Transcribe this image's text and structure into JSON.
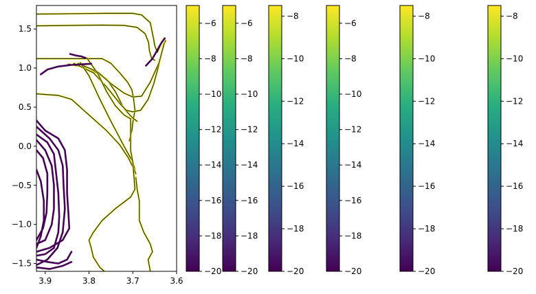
{
  "chart_data": [
    {
      "type": "line",
      "title": "",
      "xlabel": "",
      "ylabel": "",
      "xlim": [
        3.92,
        3.6
      ],
      "ylim": [
        -1.6,
        1.8
      ],
      "x_inverted": true,
      "xticks": [
        3.9,
        3.8,
        3.7,
        3.6
      ],
      "xtick_labels": [
        "3.9",
        "3.8",
        "3.7",
        "3.6"
      ],
      "yticks": [
        -1.5,
        -1.0,
        -0.5,
        0.0,
        0.5,
        1.0,
        1.5
      ],
      "ytick_labels": [
        "−1.5",
        "−1.0",
        "−0.5",
        "0.0",
        "0.5",
        "1.0",
        "1.5"
      ],
      "grid": false,
      "colormap": "viridis",
      "series": [
        {
          "kind": "thin",
          "color": "#440154",
          "points": [
            [
              3.92,
              1.69
            ],
            [
              3.76,
              1.7
            ],
            [
              3.7,
              1.7
            ],
            [
              3.68,
              1.68
            ],
            [
              3.66,
              1.58
            ],
            [
              3.652,
              1.36
            ],
            [
              3.65,
              1.29
            ],
            [
              3.644,
              1.2
            ],
            [
              3.637,
              1.29
            ],
            [
              3.63,
              1.37
            ]
          ]
        },
        {
          "kind": "thin",
          "color": "#440154",
          "points": [
            [
              3.92,
              1.54
            ],
            [
              3.77,
              1.55
            ],
            [
              3.72,
              1.545
            ],
            [
              3.69,
              1.52
            ],
            [
              3.672,
              1.44
            ],
            [
              3.664,
              1.33
            ],
            [
              3.662,
              1.22
            ],
            [
              3.657,
              1.12
            ],
            [
              3.65,
              1.1
            ]
          ]
        },
        {
          "kind": "thin",
          "color": "#440154",
          "points": [
            [
              3.92,
              1.12
            ],
            [
              3.81,
              1.12
            ],
            [
              3.77,
              1.12
            ],
            [
              3.75,
              1.06
            ],
            [
              3.73,
              0.94
            ],
            [
              3.712,
              0.82
            ],
            [
              3.702,
              0.72
            ],
            [
              3.698,
              0.6
            ],
            [
              3.695,
              0.46
            ],
            [
              3.7,
              0.3
            ],
            [
              3.702,
              0.2
            ],
            [
              3.708,
              0.07
            ]
          ]
        },
        {
          "kind": "thin",
          "color": "#440154",
          "points": [
            [
              3.847,
              1.05
            ],
            [
              3.8,
              1.0
            ],
            [
              3.76,
              0.86
            ],
            [
              3.74,
              0.7
            ],
            [
              3.72,
              0.48
            ],
            [
              3.7,
              0.36
            ],
            [
              3.69,
              0.32
            ]
          ]
        },
        {
          "kind": "thin",
          "color": "#440154",
          "points": [
            [
              3.835,
              1.06
            ],
            [
              3.79,
              0.94
            ],
            [
              3.76,
              0.76
            ],
            [
              3.73,
              0.55
            ],
            [
              3.715,
              0.46
            ],
            [
              3.7,
              0.44
            ],
            [
              3.682,
              0.46
            ],
            [
              3.665,
              0.6
            ],
            [
              3.652,
              0.8
            ],
            [
              3.64,
              1.05
            ],
            [
              3.63,
              1.3
            ],
            [
              3.625,
              1.35
            ]
          ]
        },
        {
          "kind": "thin",
          "color": "#440154",
          "points": [
            [
              3.825,
              1.06
            ],
            [
              3.78,
              0.95
            ],
            [
              3.75,
              0.8
            ],
            [
              3.72,
              0.68
            ],
            [
              3.7,
              0.63
            ],
            [
              3.68,
              0.64
            ],
            [
              3.66,
              0.82
            ],
            [
              3.64,
              1.07
            ],
            [
              3.628,
              1.32
            ]
          ]
        },
        {
          "kind": "thin",
          "color": "#440154",
          "points": [
            [
              3.82,
              1.07
            ],
            [
              3.8,
              0.9
            ],
            [
              3.775,
              0.6
            ],
            [
              3.75,
              0.32
            ],
            [
              3.72,
              0.0
            ],
            [
              3.7,
              -0.2
            ],
            [
              3.695,
              -0.3
            ]
          ]
        },
        {
          "kind": "thin",
          "color": "#440154",
          "points": [
            [
              3.92,
              0.67
            ],
            [
              3.87,
              0.65
            ],
            [
              3.84,
              0.6
            ],
            [
              3.8,
              0.4
            ],
            [
              3.76,
              0.2
            ],
            [
              3.73,
              0.02
            ],
            [
              3.71,
              -0.15
            ],
            [
              3.697,
              -0.3
            ],
            [
              3.693,
              -0.35
            ]
          ]
        },
        {
          "kind": "thin",
          "color": "#440154",
          "points": [
            [
              3.805,
              1.13
            ],
            [
              3.78,
              0.93
            ],
            [
              3.76,
              0.7
            ],
            [
              3.74,
              0.52
            ],
            [
              3.72,
              0.4
            ],
            [
              3.705,
              0.35
            ],
            [
              3.705,
              -0.05
            ],
            [
              3.7,
              -0.2
            ],
            [
              3.695,
              -0.55
            ],
            [
              3.705,
              -0.65
            ],
            [
              3.74,
              -0.8
            ],
            [
              3.77,
              -0.95
            ],
            [
              3.79,
              -1.1
            ],
            [
              3.8,
              -1.2
            ],
            [
              3.795,
              -1.3
            ],
            [
              3.79,
              -1.42
            ],
            [
              3.775,
              -1.55
            ],
            [
              3.765,
              -1.6
            ]
          ]
        },
        {
          "kind": "thin",
          "color": "#440154",
          "points": [
            [
              3.693,
              -0.4
            ],
            [
              3.69,
              -0.55
            ],
            [
              3.685,
              -0.7
            ],
            [
              3.685,
              -0.82
            ],
            [
              3.685,
              -0.95
            ],
            [
              3.675,
              -1.1
            ],
            [
              3.66,
              -1.25
            ],
            [
              3.655,
              -1.35
            ],
            [
              3.665,
              -1.45
            ],
            [
              3.66,
              -1.6
            ]
          ]
        },
        {
          "kind": "thick",
          "color": "#440154",
          "points": [
            [
              3.91,
              0.92
            ],
            [
              3.895,
              0.98
            ],
            [
              3.87,
              1.02
            ],
            [
              3.84,
              1.04
            ],
            [
              3.81,
              1.05
            ],
            [
              3.795,
              1.055
            ]
          ]
        },
        {
          "kind": "thick",
          "color": "#440154",
          "points": [
            [
              3.843,
              1.18
            ],
            [
              3.83,
              1.16
            ],
            [
              3.818,
              1.15
            ],
            [
              3.808,
              1.13
            ]
          ]
        },
        {
          "kind": "thick",
          "color": "#440154",
          "points": [
            [
              3.92,
              0.33
            ],
            [
              3.9,
              0.2
            ],
            [
              3.87,
              0.1
            ],
            [
              3.855,
              -0.05
            ],
            [
              3.85,
              -0.3
            ],
            [
              3.85,
              -0.6
            ],
            [
              3.847,
              -0.85
            ],
            [
              3.845,
              -1.05
            ],
            [
              3.86,
              -1.2
            ],
            [
              3.89,
              -1.3
            ],
            [
              3.92,
              -1.35
            ]
          ]
        },
        {
          "kind": "thick",
          "color": "#440154",
          "points": [
            [
              3.92,
              0.25
            ],
            [
              3.89,
              0.1
            ],
            [
              3.87,
              -0.05
            ],
            [
              3.86,
              -0.25
            ],
            [
              3.858,
              -0.5
            ],
            [
              3.855,
              -0.8
            ],
            [
              3.86,
              -1.1
            ],
            [
              3.872,
              -1.3
            ],
            [
              3.895,
              -1.45
            ],
            [
              3.92,
              -1.52
            ]
          ]
        },
        {
          "kind": "thick",
          "color": "#440154",
          "points": [
            [
              3.92,
              0.15
            ],
            [
              3.895,
              0.05
            ],
            [
              3.88,
              -0.1
            ],
            [
              3.875,
              -0.35
            ],
            [
              3.87,
              -0.6
            ],
            [
              3.868,
              -0.9
            ],
            [
              3.87,
              -1.1
            ],
            [
              3.88,
              -1.3
            ],
            [
              3.9,
              -1.38
            ],
            [
              3.92,
              -1.4
            ]
          ]
        },
        {
          "kind": "thick",
          "color": "#440154",
          "points": [
            [
              3.92,
              0.08
            ],
            [
              3.9,
              -0.05
            ],
            [
              3.885,
              -0.25
            ],
            [
              3.88,
              -0.5
            ],
            [
              3.88,
              -0.8
            ],
            [
              3.885,
              -1.0
            ],
            [
              3.9,
              -1.2
            ],
            [
              3.92,
              -1.25
            ]
          ]
        },
        {
          "kind": "thick",
          "color": "#440154",
          "points": [
            [
              3.92,
              -0.05
            ],
            [
              3.905,
              -0.15
            ],
            [
              3.895,
              -0.35
            ],
            [
              3.895,
              -0.6
            ],
            [
              3.897,
              -0.85
            ],
            [
              3.905,
              -1.05
            ],
            [
              3.92,
              -1.2
            ]
          ]
        },
        {
          "kind": "thick",
          "color": "#440154",
          "points": [
            [
              3.92,
              -0.3
            ],
            [
              3.91,
              -0.45
            ],
            [
              3.903,
              -0.7
            ],
            [
              3.903,
              -0.95
            ],
            [
              3.91,
              -1.15
            ],
            [
              3.92,
              -1.3
            ]
          ]
        },
        {
          "kind": "thick",
          "color": "#440154",
          "points": [
            [
              3.92,
              -1.45
            ],
            [
              3.895,
              -1.48
            ],
            [
              3.87,
              -1.5
            ],
            [
              3.85,
              -1.45
            ],
            [
              3.84,
              -1.35
            ]
          ]
        },
        {
          "kind": "thick",
          "color": "#440154",
          "points": [
            [
              3.92,
              -1.55
            ],
            [
              3.89,
              -1.57
            ],
            [
              3.86,
              -1.53
            ],
            [
              3.84,
              -1.48
            ]
          ]
        },
        {
          "kind": "thick",
          "color": "#440154",
          "points": [
            [
              3.67,
              1.03
            ],
            [
              3.655,
              1.12
            ],
            [
              3.645,
              1.22
            ],
            [
              3.635,
              1.32
            ],
            [
              3.627,
              1.38
            ]
          ]
        }
      ]
    },
    {
      "type": "colorbar",
      "colormap": "viridis",
      "range": [
        -20,
        -5
      ],
      "ticks": [
        -6,
        -8,
        -10,
        -12,
        -14,
        -16,
        -18,
        -20
      ],
      "tick_labels": [
        "−6",
        "−8",
        "−10",
        "−12",
        "−14",
        "−16",
        "−18",
        "−20"
      ]
    },
    {
      "type": "colorbar",
      "colormap": "viridis",
      "range": [
        -20,
        -5
      ],
      "ticks": [
        -6,
        -8,
        -10,
        -12,
        -14,
        -16,
        -18,
        -20
      ],
      "tick_labels": [
        "−6",
        "−8",
        "−10",
        "−12",
        "−14",
        "−16",
        "−18",
        "−20"
      ]
    },
    {
      "type": "colorbar",
      "colormap": "viridis",
      "range": [
        -20,
        -7.5
      ],
      "ticks": [
        -8,
        -10,
        -12,
        -14,
        -16,
        -18,
        -20
      ],
      "tick_labels": [
        "−8",
        "−10",
        "−12",
        "−14",
        "−16",
        "−18",
        "−20"
      ]
    },
    {
      "type": "colorbar",
      "colormap": "viridis",
      "range": [
        -20,
        -5
      ],
      "ticks": [
        -6,
        -8,
        -10,
        -12,
        -14,
        -16,
        -18,
        -20
      ],
      "tick_labels": [
        "−6",
        "−8",
        "−10",
        "−12",
        "−14",
        "−16",
        "−18",
        "−20"
      ]
    },
    {
      "type": "colorbar",
      "colormap": "viridis",
      "range": [
        -20,
        -7.5
      ],
      "ticks": [
        -8,
        -10,
        -12,
        -14,
        -16,
        -18,
        -20
      ],
      "tick_labels": [
        "−8",
        "−10",
        "−12",
        "−14",
        "−16",
        "−18",
        "−20"
      ]
    },
    {
      "type": "colorbar",
      "colormap": "viridis",
      "range": [
        -20,
        -7.5
      ],
      "ticks": [
        -8,
        -10,
        -12,
        -14,
        -16,
        -18,
        -20
      ],
      "tick_labels": [
        "−8",
        "−10",
        "−12",
        "−14",
        "−16",
        "−18",
        "−20"
      ]
    }
  ]
}
